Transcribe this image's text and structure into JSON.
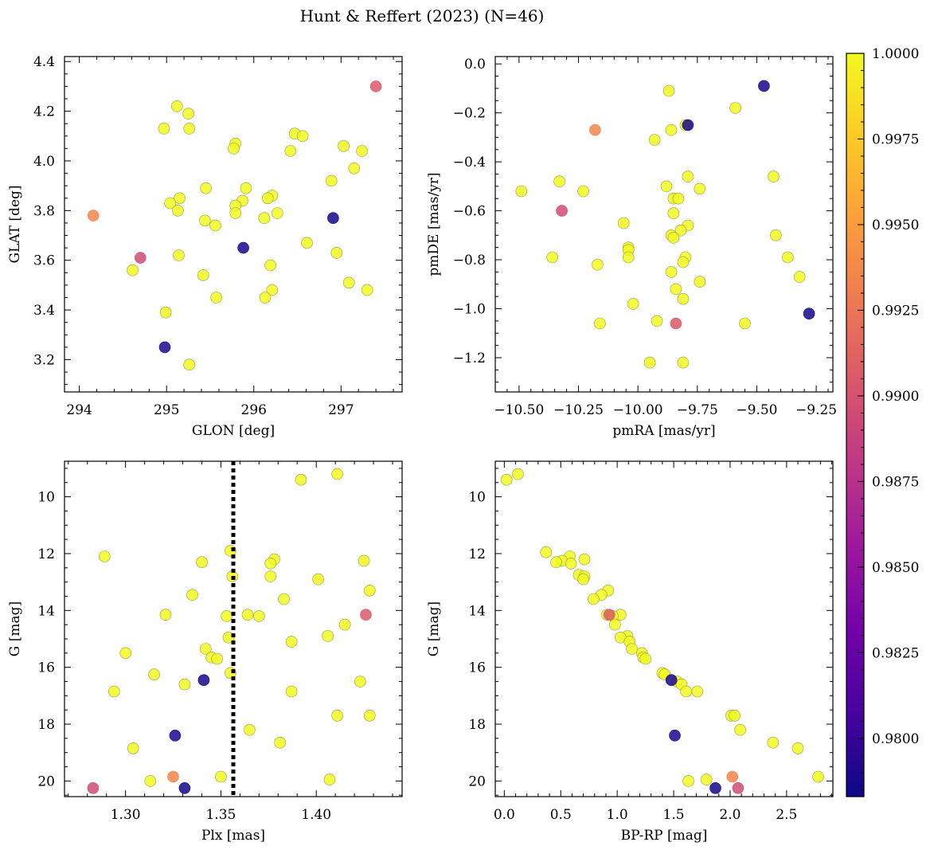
{
  "title": "Hunt & Reffert (2023) (N=46)",
  "colorbar": {
    "min": 0.9783,
    "max": 1.0,
    "ticks": [
      0.98,
      0.9825,
      0.985,
      0.9875,
      0.99,
      0.9925,
      0.995,
      0.9975,
      1.0
    ],
    "tick_labels": [
      "0.9800",
      "0.9825",
      "0.9850",
      "0.9875",
      "0.9900",
      "0.9925",
      "0.9950",
      "0.9975",
      "1.0000"
    ],
    "colormap": "plasma"
  },
  "colormap_stops": [
    "#0d0887",
    "#46039f",
    "#7201a8",
    "#9c179e",
    "#bd3786",
    "#d8576b",
    "#ed7953",
    "#fb9f3a",
    "#fdca26",
    "#f0f921"
  ],
  "chart_data": [
    {
      "type": "scatter",
      "xlabel": "GLON [deg]",
      "ylabel": "GLAT [deg]",
      "xlim": [
        293.83,
        297.7
      ],
      "ylim": [
        3.07,
        4.42
      ],
      "xticks": [
        294,
        295,
        296,
        297
      ],
      "xtick_labels": [
        "294",
        "295",
        "296",
        "297"
      ],
      "yticks": [
        3.2,
        3.4,
        3.6,
        3.8,
        4.0,
        4.2,
        4.4
      ],
      "ytick_labels": [
        "3.2",
        "3.4",
        "3.6",
        "3.8",
        "4.0",
        "4.2",
        "4.4"
      ],
      "invert_y": false,
      "points": [
        {
          "x": 295.12,
          "y": 4.22,
          "c": 1.0
        },
        {
          "x": 295.25,
          "y": 4.19,
          "c": 1.0
        },
        {
          "x": 294.97,
          "y": 4.13,
          "c": 1.0
        },
        {
          "x": 295.26,
          "y": 4.13,
          "c": 1.0
        },
        {
          "x": 296.47,
          "y": 4.11,
          "c": 1.0
        },
        {
          "x": 296.56,
          "y": 4.1,
          "c": 1.0
        },
        {
          "x": 295.79,
          "y": 4.07,
          "c": 1.0
        },
        {
          "x": 295.77,
          "y": 4.05,
          "c": 1.0
        },
        {
          "x": 297.03,
          "y": 4.06,
          "c": 1.0
        },
        {
          "x": 296.42,
          "y": 4.04,
          "c": 1.0
        },
        {
          "x": 297.24,
          "y": 4.04,
          "c": 1.0
        },
        {
          "x": 297.15,
          "y": 3.97,
          "c": 1.0
        },
        {
          "x": 296.89,
          "y": 3.92,
          "c": 1.0
        },
        {
          "x": 295.45,
          "y": 3.89,
          "c": 1.0
        },
        {
          "x": 295.91,
          "y": 3.89,
          "c": 1.0
        },
        {
          "x": 296.21,
          "y": 3.86,
          "c": 1.0
        },
        {
          "x": 295.15,
          "y": 3.85,
          "c": 1.0
        },
        {
          "x": 296.16,
          "y": 3.85,
          "c": 1.0
        },
        {
          "x": 295.04,
          "y": 3.83,
          "c": 1.0
        },
        {
          "x": 295.87,
          "y": 3.84,
          "c": 1.0
        },
        {
          "x": 295.79,
          "y": 3.82,
          "c": 1.0
        },
        {
          "x": 295.79,
          "y": 3.79,
          "c": 1.0
        },
        {
          "x": 295.13,
          "y": 3.8,
          "c": 1.0
        },
        {
          "x": 296.27,
          "y": 3.79,
          "c": 1.0
        },
        {
          "x": 296.12,
          "y": 3.77,
          "c": 1.0
        },
        {
          "x": 294.16,
          "y": 3.78,
          "c": 0.9935
        },
        {
          "x": 295.44,
          "y": 3.76,
          "c": 1.0
        },
        {
          "x": 295.56,
          "y": 3.74,
          "c": 1.0
        },
        {
          "x": 296.91,
          "y": 3.77,
          "c": 0.9786
        },
        {
          "x": 296.61,
          "y": 3.67,
          "c": 1.0
        },
        {
          "x": 295.88,
          "y": 3.65,
          "c": 0.9788
        },
        {
          "x": 296.95,
          "y": 3.63,
          "c": 1.0
        },
        {
          "x": 295.14,
          "y": 3.62,
          "c": 1.0
        },
        {
          "x": 294.7,
          "y": 3.61,
          "c": 0.9895
        },
        {
          "x": 296.19,
          "y": 3.58,
          "c": 1.0
        },
        {
          "x": 294.61,
          "y": 3.56,
          "c": 1.0
        },
        {
          "x": 295.42,
          "y": 3.54,
          "c": 1.0
        },
        {
          "x": 297.09,
          "y": 3.51,
          "c": 1.0
        },
        {
          "x": 296.21,
          "y": 3.48,
          "c": 1.0
        },
        {
          "x": 297.3,
          "y": 3.48,
          "c": 1.0
        },
        {
          "x": 296.13,
          "y": 3.45,
          "c": 1.0
        },
        {
          "x": 295.57,
          "y": 3.45,
          "c": 1.0
        },
        {
          "x": 294.99,
          "y": 3.39,
          "c": 1.0
        },
        {
          "x": 294.98,
          "y": 3.25,
          "c": 0.979
        },
        {
          "x": 295.26,
          "y": 3.18,
          "c": 1.0
        },
        {
          "x": 297.4,
          "y": 4.3,
          "c": 0.9905
        }
      ]
    },
    {
      "type": "scatter",
      "xlabel": "pmRA [mas/yr]",
      "ylabel": "pmDE [mas/yr]",
      "xlim": [
        -10.6,
        -9.18
      ],
      "ylim": [
        -1.34,
        0.03
      ],
      "xticks": [
        -10.5,
        -10.25,
        -10.0,
        -9.75,
        -9.5,
        -9.25
      ],
      "xtick_labels": [
        "−10.50",
        "−10.25",
        "−10.00",
        "−9.75",
        "−9.50",
        "−9.25"
      ],
      "yticks": [
        -1.2,
        -1.0,
        -0.8,
        -0.6,
        -0.4,
        -0.2,
        0.0
      ],
      "ytick_labels": [
        "−1.2",
        "−1.0",
        "−0.8",
        "−0.6",
        "−0.4",
        "−0.2",
        "0.0"
      ],
      "invert_y": false,
      "points": [
        {
          "x": -9.47,
          "y": -0.09,
          "c": 0.9788
        },
        {
          "x": -9.87,
          "y": -0.11,
          "c": 1.0
        },
        {
          "x": -9.59,
          "y": -0.18,
          "c": 1.0
        },
        {
          "x": -9.79,
          "y": -0.25,
          "c": 0.9786
        },
        {
          "x": -9.8,
          "y": -0.25,
          "c": 1.0
        },
        {
          "x": -10.18,
          "y": -0.27,
          "c": 0.9935
        },
        {
          "x": -9.86,
          "y": -0.27,
          "c": 1.0
        },
        {
          "x": -9.93,
          "y": -0.31,
          "c": 1.0
        },
        {
          "x": -9.79,
          "y": -0.46,
          "c": 1.0
        },
        {
          "x": -9.43,
          "y": -0.46,
          "c": 1.0
        },
        {
          "x": -10.33,
          "y": -0.48,
          "c": 1.0
        },
        {
          "x": -9.88,
          "y": -0.5,
          "c": 1.0
        },
        {
          "x": -10.49,
          "y": -0.52,
          "c": 1.0
        },
        {
          "x": -10.23,
          "y": -0.52,
          "c": 1.0
        },
        {
          "x": -9.74,
          "y": -0.51,
          "c": 1.0
        },
        {
          "x": -9.85,
          "y": -0.55,
          "c": 1.0
        },
        {
          "x": -9.83,
          "y": -0.55,
          "c": 1.0
        },
        {
          "x": -10.32,
          "y": -0.6,
          "c": 0.9895
        },
        {
          "x": -9.85,
          "y": -0.61,
          "c": 1.0
        },
        {
          "x": -10.06,
          "y": -0.65,
          "c": 1.0
        },
        {
          "x": -9.79,
          "y": -0.66,
          "c": 1.0
        },
        {
          "x": -9.82,
          "y": -0.68,
          "c": 1.0
        },
        {
          "x": -9.86,
          "y": -0.7,
          "c": 1.0
        },
        {
          "x": -9.85,
          "y": -0.71,
          "c": 1.0
        },
        {
          "x": -9.42,
          "y": -0.7,
          "c": 1.0
        },
        {
          "x": -10.04,
          "y": -0.75,
          "c": 1.0
        },
        {
          "x": -10.04,
          "y": -0.76,
          "c": 1.0
        },
        {
          "x": -9.8,
          "y": -0.79,
          "c": 1.0
        },
        {
          "x": -9.37,
          "y": -0.79,
          "c": 1.0
        },
        {
          "x": -10.36,
          "y": -0.79,
          "c": 1.0
        },
        {
          "x": -10.04,
          "y": -0.79,
          "c": 1.0
        },
        {
          "x": -9.81,
          "y": -0.81,
          "c": 1.0
        },
        {
          "x": -10.17,
          "y": -0.82,
          "c": 1.0
        },
        {
          "x": -9.86,
          "y": -0.85,
          "c": 1.0
        },
        {
          "x": -9.32,
          "y": -0.87,
          "c": 1.0
        },
        {
          "x": -9.74,
          "y": -0.89,
          "c": 1.0
        },
        {
          "x": -9.84,
          "y": -0.92,
          "c": 1.0
        },
        {
          "x": -9.81,
          "y": -0.96,
          "c": 1.0
        },
        {
          "x": -10.02,
          "y": -0.98,
          "c": 1.0
        },
        {
          "x": -9.28,
          "y": -1.02,
          "c": 0.9787
        },
        {
          "x": -9.92,
          "y": -1.05,
          "c": 1.0
        },
        {
          "x": -10.16,
          "y": -1.06,
          "c": 1.0
        },
        {
          "x": -9.55,
          "y": -1.06,
          "c": 1.0
        },
        {
          "x": -9.84,
          "y": -1.06,
          "c": 0.9905
        },
        {
          "x": -9.95,
          "y": -1.22,
          "c": 1.0
        },
        {
          "x": -9.81,
          "y": -1.22,
          "c": 1.0
        }
      ]
    },
    {
      "type": "scatter",
      "xlabel": "Plx [mas]",
      "ylabel": "G [mag]",
      "xlim": [
        1.268,
        1.445
      ],
      "ylim": [
        8.75,
        20.55
      ],
      "xticks": [
        1.3,
        1.35,
        1.4
      ],
      "xtick_labels": [
        "1.30",
        "1.35",
        "1.40"
      ],
      "yticks": [
        10,
        12,
        14,
        16,
        18,
        20
      ],
      "ytick_labels": [
        "10",
        "12",
        "14",
        "16",
        "18",
        "20"
      ],
      "invert_y": true,
      "vline": {
        "x": 1.3565,
        "style": "dotted"
      },
      "points": [
        {
          "x": 1.411,
          "y": 9.2,
          "c": 1.0
        },
        {
          "x": 1.392,
          "y": 9.4,
          "c": 1.0
        },
        {
          "x": 1.355,
          "y": 11.9,
          "c": 1.0
        },
        {
          "x": 1.289,
          "y": 12.1,
          "c": 1.0
        },
        {
          "x": 1.378,
          "y": 12.2,
          "c": 1.0
        },
        {
          "x": 1.425,
          "y": 12.25,
          "c": 1.0
        },
        {
          "x": 1.34,
          "y": 12.3,
          "c": 1.0
        },
        {
          "x": 1.376,
          "y": 12.35,
          "c": 1.0
        },
        {
          "x": 1.356,
          "y": 12.8,
          "c": 1.0
        },
        {
          "x": 1.376,
          "y": 12.8,
          "c": 1.0
        },
        {
          "x": 1.401,
          "y": 12.9,
          "c": 1.0
        },
        {
          "x": 1.428,
          "y": 13.3,
          "c": 1.0
        },
        {
          "x": 1.335,
          "y": 13.45,
          "c": 1.0
        },
        {
          "x": 1.383,
          "y": 13.6,
          "c": 1.0
        },
        {
          "x": 1.321,
          "y": 14.15,
          "c": 1.0
        },
        {
          "x": 1.353,
          "y": 14.2,
          "c": 1.0
        },
        {
          "x": 1.364,
          "y": 14.15,
          "c": 1.0
        },
        {
          "x": 1.37,
          "y": 14.2,
          "c": 1.0
        },
        {
          "x": 1.426,
          "y": 14.15,
          "c": 0.9905
        },
        {
          "x": 1.415,
          "y": 14.5,
          "c": 1.0
        },
        {
          "x": 1.406,
          "y": 14.9,
          "c": 1.0
        },
        {
          "x": 1.354,
          "y": 14.95,
          "c": 1.0
        },
        {
          "x": 1.387,
          "y": 15.1,
          "c": 1.0
        },
        {
          "x": 1.342,
          "y": 15.35,
          "c": 1.0
        },
        {
          "x": 1.3,
          "y": 15.5,
          "c": 1.0
        },
        {
          "x": 1.345,
          "y": 15.65,
          "c": 1.0
        },
        {
          "x": 1.348,
          "y": 15.7,
          "c": 1.0
        },
        {
          "x": 1.355,
          "y": 16.2,
          "c": 1.0
        },
        {
          "x": 1.315,
          "y": 16.25,
          "c": 1.0
        },
        {
          "x": 1.341,
          "y": 16.45,
          "c": 0.9788
        },
        {
          "x": 1.423,
          "y": 16.5,
          "c": 1.0
        },
        {
          "x": 1.331,
          "y": 16.6,
          "c": 1.0
        },
        {
          "x": 1.294,
          "y": 16.85,
          "c": 1.0
        },
        {
          "x": 1.387,
          "y": 16.85,
          "c": 1.0
        },
        {
          "x": 1.411,
          "y": 17.7,
          "c": 1.0
        },
        {
          "x": 1.428,
          "y": 17.7,
          "c": 1.0
        },
        {
          "x": 1.365,
          "y": 18.2,
          "c": 1.0
        },
        {
          "x": 1.326,
          "y": 18.4,
          "c": 0.979
        },
        {
          "x": 1.381,
          "y": 18.65,
          "c": 1.0
        },
        {
          "x": 1.304,
          "y": 18.85,
          "c": 1.0
        },
        {
          "x": 1.35,
          "y": 19.85,
          "c": 1.0
        },
        {
          "x": 1.325,
          "y": 19.85,
          "c": 0.9935
        },
        {
          "x": 1.407,
          "y": 19.95,
          "c": 1.0
        },
        {
          "x": 1.313,
          "y": 20.0,
          "c": 1.0
        },
        {
          "x": 1.283,
          "y": 20.25,
          "c": 0.9895
        },
        {
          "x": 1.331,
          "y": 20.25,
          "c": 0.9786
        }
      ]
    },
    {
      "type": "scatter",
      "xlabel": "BP-RP [mag]",
      "ylabel": "G [mag]",
      "xlim": [
        -0.08,
        2.91
      ],
      "ylim": [
        8.75,
        20.55
      ],
      "xticks": [
        0.0,
        0.5,
        1.0,
        1.5,
        2.0,
        2.5
      ],
      "xtick_labels": [
        "0.0",
        "0.5",
        "1.0",
        "1.5",
        "2.0",
        "2.5"
      ],
      "yticks": [
        10,
        12,
        14,
        16,
        18,
        20
      ],
      "ytick_labels": [
        "10",
        "12",
        "14",
        "16",
        "18",
        "20"
      ],
      "invert_y": true,
      "points": [
        {
          "x": 0.12,
          "y": 9.2,
          "c": 1.0
        },
        {
          "x": 0.02,
          "y": 9.4,
          "c": 1.0
        },
        {
          "x": 0.37,
          "y": 11.95,
          "c": 1.0
        },
        {
          "x": 0.58,
          "y": 12.1,
          "c": 1.0
        },
        {
          "x": 0.71,
          "y": 12.2,
          "c": 1.0
        },
        {
          "x": 0.51,
          "y": 12.25,
          "c": 1.0
        },
        {
          "x": 0.46,
          "y": 12.3,
          "c": 1.0
        },
        {
          "x": 0.59,
          "y": 12.35,
          "c": 1.0
        },
        {
          "x": 0.66,
          "y": 12.75,
          "c": 1.0
        },
        {
          "x": 0.71,
          "y": 12.8,
          "c": 1.0
        },
        {
          "x": 0.7,
          "y": 12.9,
          "c": 1.0
        },
        {
          "x": 0.92,
          "y": 13.3,
          "c": 1.0
        },
        {
          "x": 0.86,
          "y": 13.45,
          "c": 1.0
        },
        {
          "x": 0.79,
          "y": 13.6,
          "c": 1.0
        },
        {
          "x": 0.91,
          "y": 14.15,
          "c": 1.0
        },
        {
          "x": 0.93,
          "y": 14.15,
          "c": 0.9905
        },
        {
          "x": 1.03,
          "y": 14.15,
          "c": 1.0
        },
        {
          "x": 0.96,
          "y": 14.2,
          "c": 1.0
        },
        {
          "x": 0.98,
          "y": 14.5,
          "c": 1.0
        },
        {
          "x": 1.09,
          "y": 14.9,
          "c": 1.0
        },
        {
          "x": 1.03,
          "y": 14.95,
          "c": 1.0
        },
        {
          "x": 1.11,
          "y": 15.1,
          "c": 1.0
        },
        {
          "x": 1.13,
          "y": 15.35,
          "c": 1.0
        },
        {
          "x": 1.22,
          "y": 15.5,
          "c": 1.0
        },
        {
          "x": 1.23,
          "y": 15.65,
          "c": 1.0
        },
        {
          "x": 1.25,
          "y": 15.7,
          "c": 1.0
        },
        {
          "x": 1.4,
          "y": 16.2,
          "c": 1.0
        },
        {
          "x": 1.42,
          "y": 16.25,
          "c": 1.0
        },
        {
          "x": 1.48,
          "y": 16.45,
          "c": 0.9788
        },
        {
          "x": 1.53,
          "y": 16.5,
          "c": 1.0
        },
        {
          "x": 1.57,
          "y": 16.6,
          "c": 1.0
        },
        {
          "x": 1.61,
          "y": 16.85,
          "c": 1.0
        },
        {
          "x": 1.71,
          "y": 16.85,
          "c": 1.0
        },
        {
          "x": 2.01,
          "y": 17.7,
          "c": 1.0
        },
        {
          "x": 2.04,
          "y": 17.7,
          "c": 1.0
        },
        {
          "x": 2.09,
          "y": 18.2,
          "c": 1.0
        },
        {
          "x": 1.51,
          "y": 18.4,
          "c": 0.979
        },
        {
          "x": 2.38,
          "y": 18.65,
          "c": 1.0
        },
        {
          "x": 2.6,
          "y": 18.85,
          "c": 1.0
        },
        {
          "x": 2.78,
          "y": 19.85,
          "c": 1.0
        },
        {
          "x": 2.02,
          "y": 19.85,
          "c": 0.9935
        },
        {
          "x": 1.79,
          "y": 19.95,
          "c": 1.0
        },
        {
          "x": 1.63,
          "y": 20.0,
          "c": 1.0
        },
        {
          "x": 1.87,
          "y": 20.25,
          "c": 0.9786
        },
        {
          "x": 2.07,
          "y": 20.25,
          "c": 0.9895
        }
      ]
    }
  ]
}
